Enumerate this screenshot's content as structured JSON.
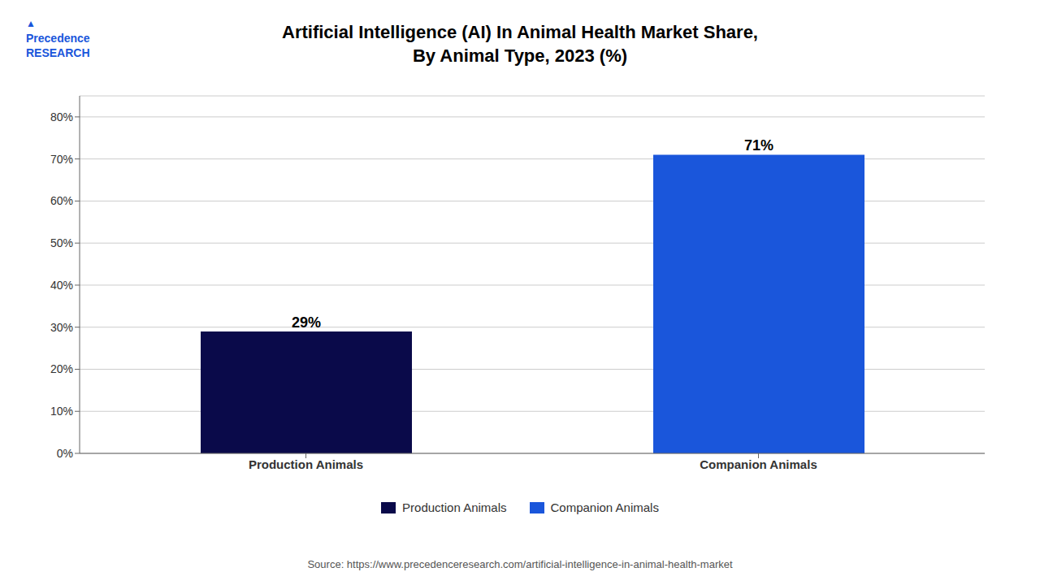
{
  "chart_data": {
    "type": "bar",
    "title": "Artificial Intelligence (AI) In Animal Health Market Share,\nBy Animal Type, 2023 (%)",
    "categories": [
      "Production Animals",
      "Companion Animals"
    ],
    "values": [
      29,
      71
    ],
    "value_labels": [
      "29%",
      "71%"
    ],
    "colors": [
      "#0a0a4a",
      "#1a56db"
    ],
    "data_labels": true,
    "ylim": [
      0,
      85
    ],
    "yticks": [
      {
        "value": 0,
        "label": "0%"
      },
      {
        "value": 10,
        "label": "10%"
      },
      {
        "value": 20,
        "label": "20%"
      },
      {
        "value": 30,
        "label": "30%"
      },
      {
        "value": 40,
        "label": "40%"
      },
      {
        "value": 50,
        "label": "50%"
      },
      {
        "value": 60,
        "label": "60%"
      },
      {
        "value": 70,
        "label": "70%"
      },
      {
        "value": 80,
        "label": "80%"
      }
    ],
    "grid": true,
    "legend": "bottom",
    "annotations": [
      "Source: https://www.precedenceresearch.com/artificial-intelligence-in-animal-health-market",
      "Precedence\nRESEARCH",
      "▲"
    ]
  }
}
